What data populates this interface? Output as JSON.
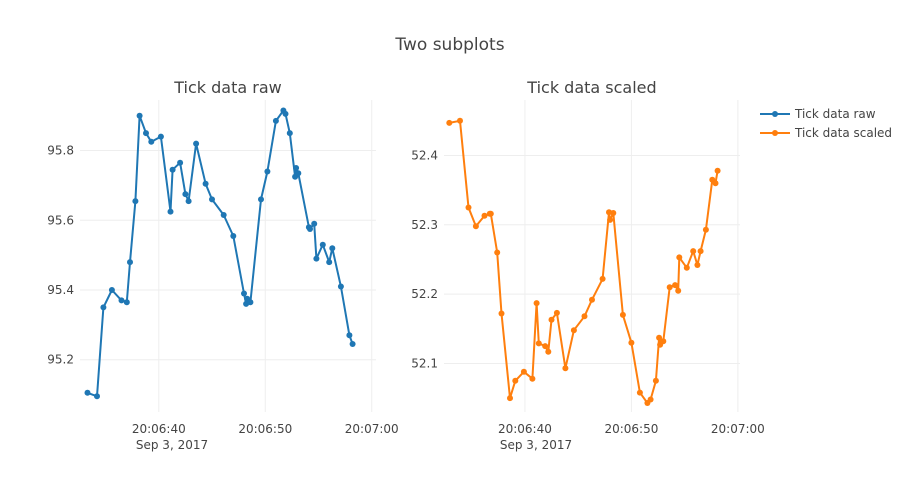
{
  "title": "Two subplots",
  "legend": {
    "placement": "top-right",
    "entries": [
      {
        "label": "Tick data raw",
        "color": "#1f77b4"
      },
      {
        "label": "Tick data scaled",
        "color": "#ff7f0e"
      }
    ]
  },
  "chart_data": [
    {
      "type": "line",
      "title": "Tick data raw",
      "color": "#1f77b4",
      "xlabel": "",
      "ylabel": "",
      "grid": true,
      "x_ticks": [
        "20:06:40",
        "20:06:50",
        "20:07:00"
      ],
      "x_date_label": "Sep 3, 2017",
      "x_range": [
        "2017-09-03 20:06:32.6",
        "2017-09-03 20:07:00.4"
      ],
      "y_ticks": [
        95.2,
        95.4,
        95.6,
        95.8
      ],
      "ylim": [
        95.05,
        95.945
      ],
      "series": [
        {
          "name": "Tick data raw",
          "x": [
            "20:06:33.3",
            "20:06:34.2",
            "20:06:34.8",
            "20:06:35.6",
            "20:06:36.5",
            "20:06:37.0",
            "20:06:37.3",
            "20:06:37.8",
            "20:06:38.2",
            "20:06:38.8",
            "20:06:39.3",
            "20:06:40.2",
            "20:06:41.1",
            "20:06:41.3",
            "20:06:42.0",
            "20:06:42.5",
            "20:06:42.8",
            "20:06:43.5",
            "20:06:44.4",
            "20:06:45.0",
            "20:06:46.1",
            "20:06:47.0",
            "20:06:48.0",
            "20:06:48.2",
            "20:06:48.3",
            "20:06:48.6",
            "20:06:49.6",
            "20:06:50.2",
            "20:06:51.0",
            "20:06:51.7",
            "20:06:51.9",
            "20:06:52.3",
            "20:06:52.8",
            "20:06:52.9",
            "20:06:53.1",
            "20:06:54.1",
            "20:06:54.2",
            "20:06:54.6",
            "20:06:54.8",
            "20:06:55.4",
            "20:06:56.0",
            "20:06:56.3",
            "20:06:57.1",
            "20:06:57.9",
            "20:06:58.2"
          ],
          "y": [
            95.105,
            95.095,
            95.35,
            95.4,
            95.37,
            95.365,
            95.48,
            95.655,
            95.9,
            95.85,
            95.825,
            95.84,
            95.625,
            95.745,
            95.765,
            95.675,
            95.655,
            95.82,
            95.705,
            95.66,
            95.615,
            95.555,
            95.39,
            95.36,
            95.375,
            95.365,
            95.66,
            95.74,
            95.885,
            95.915,
            95.905,
            95.85,
            95.725,
            95.75,
            95.735,
            95.58,
            95.575,
            95.59,
            95.49,
            95.53,
            95.48,
            95.52,
            95.41,
            95.27,
            95.245
          ]
        }
      ]
    },
    {
      "type": "line",
      "title": "Tick data scaled",
      "color": "#ff7f0e",
      "xlabel": "",
      "ylabel": "",
      "grid": true,
      "x_ticks": [
        "20:06:40",
        "20:06:50",
        "20:07:00"
      ],
      "x_date_label": "Sep 3, 2017",
      "x_range": [
        "2017-09-03 20:06:32.4",
        "2017-09-03 20:07:00.2"
      ],
      "y_ticks": [
        52.1,
        52.2,
        52.3,
        52.4
      ],
      "ylim": [
        52.03,
        52.48
      ],
      "series": [
        {
          "name": "Tick data scaled",
          "x": [
            "20:06:32.9",
            "20:06:33.9",
            "20:06:34.7",
            "20:06:35.4",
            "20:06:36.2",
            "20:06:36.7",
            "20:06:36.8",
            "20:06:37.4",
            "20:06:37.8",
            "20:06:38.6",
            "20:06:39.1",
            "20:06:39.9",
            "20:06:40.7",
            "20:06:41.1",
            "20:06:41.3",
            "20:06:41.9",
            "20:06:42.2",
            "20:06:42.5",
            "20:06:43.0",
            "20:06:43.8",
            "20:06:44.6",
            "20:06:45.6",
            "20:06:46.3",
            "20:06:47.3",
            "20:06:47.9",
            "20:06:48.0",
            "20:06:48.3",
            "20:06:49.2",
            "20:06:50.0",
            "20:06:50.8",
            "20:06:51.5",
            "20:06:51.8",
            "20:06:52.3",
            "20:06:52.6",
            "20:06:52.7",
            "20:06:53.0",
            "20:06:53.6",
            "20:06:54.1",
            "20:06:54.4",
            "20:06:54.5",
            "20:06:55.2",
            "20:06:55.8",
            "20:06:56.2",
            "20:06:56.5",
            "20:06:57.0",
            "20:06:57.6",
            "20:06:57.9",
            "20:06:58.1"
          ],
          "y": [
            52.447,
            52.45,
            52.325,
            52.298,
            52.313,
            52.316,
            52.316,
            52.26,
            52.172,
            52.05,
            52.075,
            52.088,
            52.078,
            52.187,
            52.129,
            52.125,
            52.117,
            52.163,
            52.173,
            52.093,
            52.148,
            52.168,
            52.192,
            52.222,
            52.318,
            52.307,
            52.317,
            52.17,
            52.13,
            52.058,
            52.043,
            52.048,
            52.075,
            52.137,
            52.127,
            52.132,
            52.21,
            52.213,
            52.205,
            52.253,
            52.238,
            52.262,
            52.242,
            52.262,
            52.293,
            52.365,
            52.36,
            52.378
          ]
        }
      ]
    }
  ]
}
